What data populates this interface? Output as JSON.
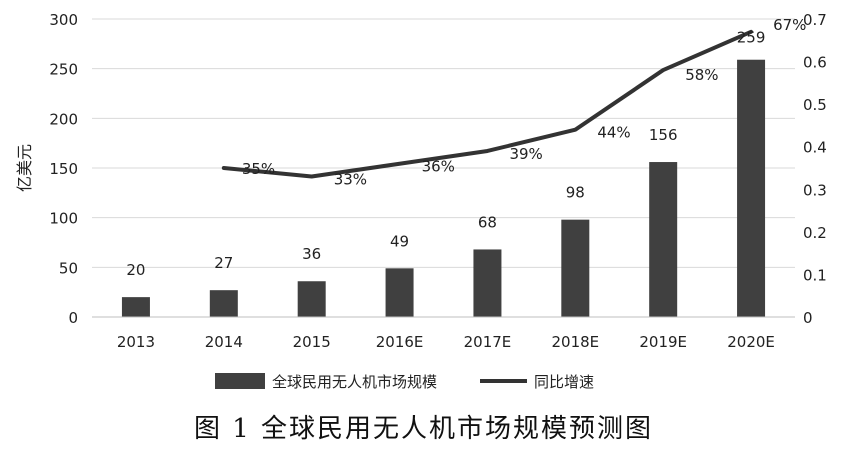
{
  "figure": {
    "caption": "图 1 全球民用无人机市场规模预测图"
  },
  "chart_data": {
    "type": "bar",
    "categories": [
      "2013",
      "2014",
      "2015",
      "2016E",
      "2017E",
      "2018E",
      "2019E",
      "2020E"
    ],
    "series": [
      {
        "name": "全球民用无人机市场规模",
        "type": "bar",
        "axis": "left",
        "values": [
          20,
          27,
          36,
          49,
          68,
          98,
          156,
          259
        ],
        "labels": [
          "20",
          "27",
          "36",
          "49",
          "68",
          "98",
          "156",
          "259"
        ],
        "color": "#404040"
      },
      {
        "name": "同比增速",
        "type": "line",
        "axis": "right",
        "values": [
          null,
          0.35,
          0.33,
          0.36,
          0.39,
          0.44,
          0.58,
          0.67
        ],
        "labels": [
          null,
          "35%",
          "33%",
          "36%",
          "39%",
          "44%",
          "58%",
          "67%"
        ],
        "color": "#333333"
      }
    ],
    "ylabel": "亿美元",
    "ylim": [
      0,
      300
    ],
    "yticks": [
      "0",
      "50",
      "100",
      "150",
      "200",
      "250",
      "300"
    ],
    "y2lim": [
      0,
      0.7
    ],
    "y2ticks": [
      "0",
      "0.1",
      "0.2",
      "0.3",
      "0.4",
      "0.5",
      "0.6",
      "0.7"
    ],
    "grid": true,
    "legend_position": "bottom"
  }
}
